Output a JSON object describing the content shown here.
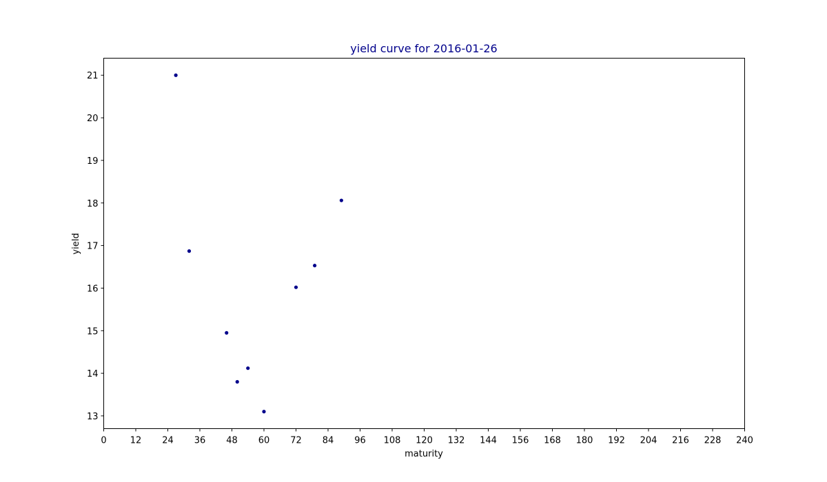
{
  "chart_data": {
    "type": "scatter",
    "title": "yield curve for 2016-01-26",
    "xlabel": "maturity",
    "ylabel": "yield",
    "xlim": [
      0,
      240
    ],
    "ylim": [
      12.7,
      21.4
    ],
    "xticks": [
      0,
      12,
      24,
      36,
      48,
      60,
      72,
      84,
      96,
      108,
      120,
      132,
      144,
      156,
      168,
      180,
      192,
      204,
      216,
      228,
      240
    ],
    "yticks": [
      13,
      14,
      15,
      16,
      17,
      18,
      19,
      20,
      21
    ],
    "grid": false,
    "series": [
      {
        "points": [
          {
            "x": 27,
            "y": 21.0
          },
          {
            "x": 32,
            "y": 16.87
          },
          {
            "x": 46,
            "y": 14.95
          },
          {
            "x": 50,
            "y": 13.8
          },
          {
            "x": 54,
            "y": 14.12
          },
          {
            "x": 60,
            "y": 13.1
          },
          {
            "x": 72,
            "y": 16.02
          },
          {
            "x": 79,
            "y": 16.53
          },
          {
            "x": 89,
            "y": 18.06
          }
        ]
      }
    ],
    "colors": {
      "marker": "#00008b",
      "title": "#00008b",
      "axes": "#000000"
    }
  }
}
